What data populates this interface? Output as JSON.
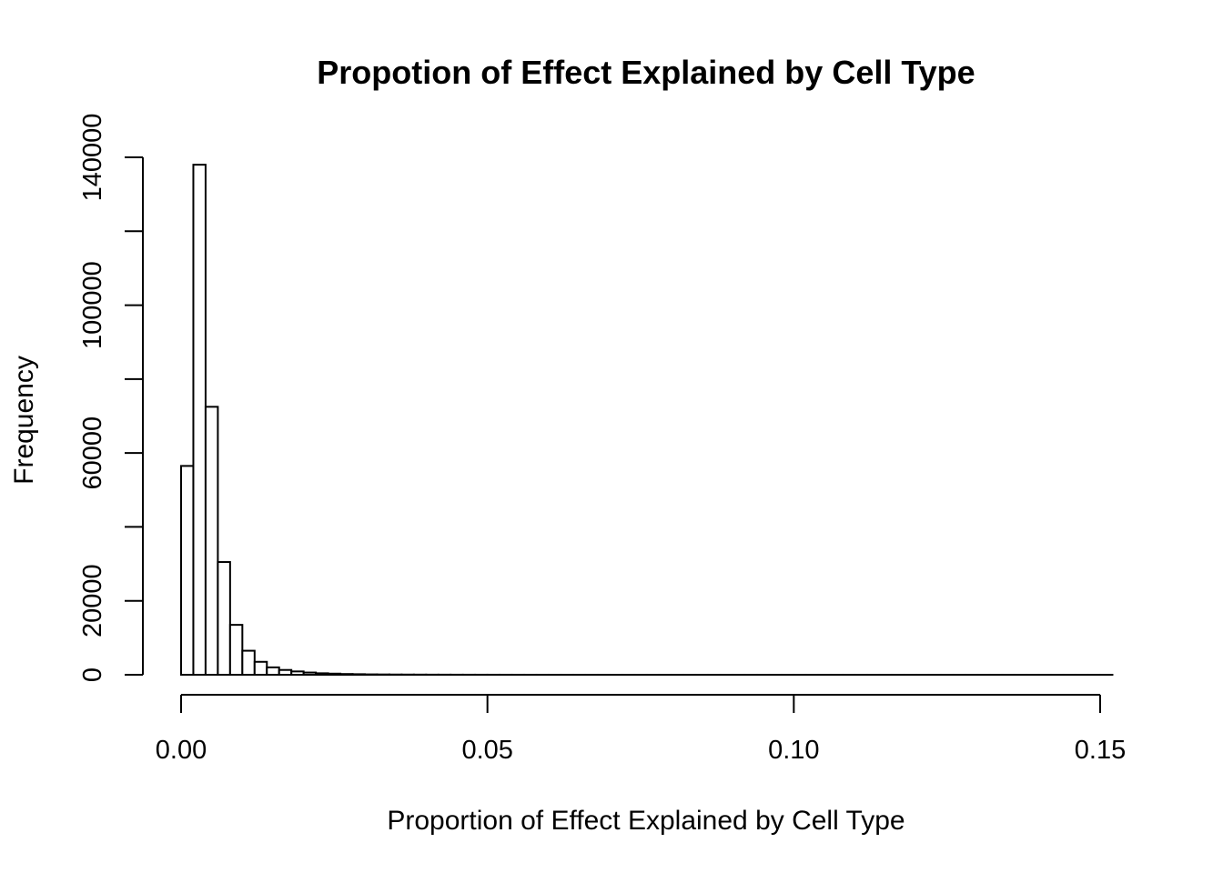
{
  "chart_data": {
    "type": "bar",
    "title": "Propotion of Effect Explained by Cell Type",
    "xlabel": "Proportion of Effect Explained by Cell Type",
    "ylabel": "Frequency",
    "xlim": [
      0,
      0.15
    ],
    "ylim": [
      0,
      140000
    ],
    "x_ticks": [
      "0.00",
      "0.05",
      "0.10",
      "0.15"
    ],
    "x_tick_values": [
      0,
      0.05,
      0.1,
      0.15
    ],
    "y_ticks": [
      "0",
      "20000",
      "60000",
      "100000",
      "140000"
    ],
    "y_tick_values": [
      0,
      20000,
      40000,
      60000,
      80000,
      100000,
      120000,
      140000
    ],
    "y_tick_labels_shown": {
      "0": "0",
      "20000": "20000",
      "60000": "60000",
      "100000": "100000",
      "140000": "140000"
    },
    "bin_width": 0.002,
    "bin_start": 0,
    "bin_end": 0.152,
    "values": [
      56500,
      138000,
      72500,
      30500,
      13500,
      6500,
      3500,
      2000,
      1300,
      900,
      600,
      400,
      300,
      200,
      150,
      100,
      80,
      60,
      50,
      40,
      30,
      25,
      20,
      15,
      12,
      10,
      8,
      6,
      5,
      4,
      3,
      3,
      2,
      2,
      2,
      1,
      1,
      1,
      1,
      1,
      1,
      1,
      1,
      1,
      1,
      1,
      1,
      1,
      1,
      1,
      1,
      1,
      1,
      1,
      1,
      1,
      1,
      1,
      1,
      1,
      1,
      1,
      1,
      1,
      1,
      1,
      1,
      1,
      1,
      1,
      1,
      1,
      1,
      1,
      1,
      1
    ],
    "grid": false,
    "legend": "none"
  }
}
